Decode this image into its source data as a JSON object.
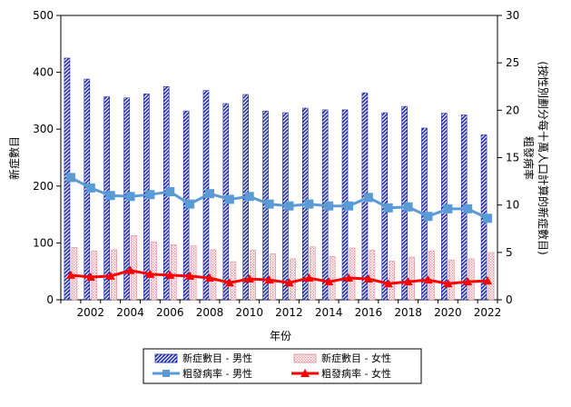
{
  "chart_data": {
    "type": "bar",
    "x": [
      2001,
      2002,
      2003,
      2004,
      2005,
      2006,
      2007,
      2008,
      2009,
      2010,
      2011,
      2012,
      2013,
      2014,
      2015,
      2016,
      2017,
      2018,
      2019,
      2020,
      2021,
      2022
    ],
    "x_tick_labels": [
      "2002",
      "2004",
      "2006",
      "2008",
      "2010",
      "2012",
      "2014",
      "2016",
      "2018",
      "2020",
      "2022"
    ],
    "xlabel": "年份",
    "ylabel_left": "新症數目",
    "ylabel_right_line1": "粗發病率",
    "ylabel_right_line2": "(按性別劃分每十萬人口計算的新症數目)",
    "ylim_left": [
      0,
      500
    ],
    "ylim_right": [
      0,
      30
    ],
    "left_ticks": [
      "0",
      "100",
      "200",
      "300",
      "400",
      "500"
    ],
    "right_ticks": [
      "0",
      "5",
      "10",
      "15",
      "20",
      "25",
      "30"
    ],
    "series": [
      {
        "name": "新症數目 - 男性",
        "kind": "bar",
        "axis": "left",
        "values": [
          425,
          388,
          357,
          355,
          362,
          375,
          332,
          368,
          345,
          361,
          332,
          329,
          337,
          334,
          334,
          364,
          329,
          340,
          302,
          328,
          325,
          290
        ]
      },
      {
        "name": "新症數目 - 女性",
        "kind": "bar",
        "axis": "left",
        "values": [
          92,
          86,
          88,
          113,
          102,
          97,
          95,
          88,
          67,
          87,
          81,
          72,
          93,
          76,
          91,
          87,
          68,
          75,
          86,
          70,
          72,
          83
        ]
      },
      {
        "name": "粗發病率 - 男性",
        "kind": "line",
        "axis": "right",
        "color": "#5b9bd5",
        "values": [
          12.9,
          11.8,
          11.0,
          10.9,
          11.1,
          11.4,
          10.1,
          11.2,
          10.6,
          10.9,
          10.1,
          9.9,
          10.1,
          9.9,
          9.9,
          10.8,
          9.7,
          9.8,
          8.8,
          9.6,
          9.6,
          8.6
        ]
      },
      {
        "name": "粗發病率 - 女性",
        "kind": "line",
        "axis": "right",
        "color": "#ff0000",
        "values": [
          2.6,
          2.4,
          2.5,
          3.1,
          2.7,
          2.6,
          2.5,
          2.3,
          1.8,
          2.2,
          2.1,
          1.8,
          2.3,
          1.9,
          2.3,
          2.2,
          1.7,
          1.9,
          2.1,
          1.7,
          1.9,
          2.0
        ]
      }
    ],
    "legend": {
      "position": "bottom",
      "items": [
        "新症數目 - 男性",
        "新症數目 - 女性",
        "粗發病率 - 男性",
        "粗發病率 - 女性"
      ]
    }
  }
}
